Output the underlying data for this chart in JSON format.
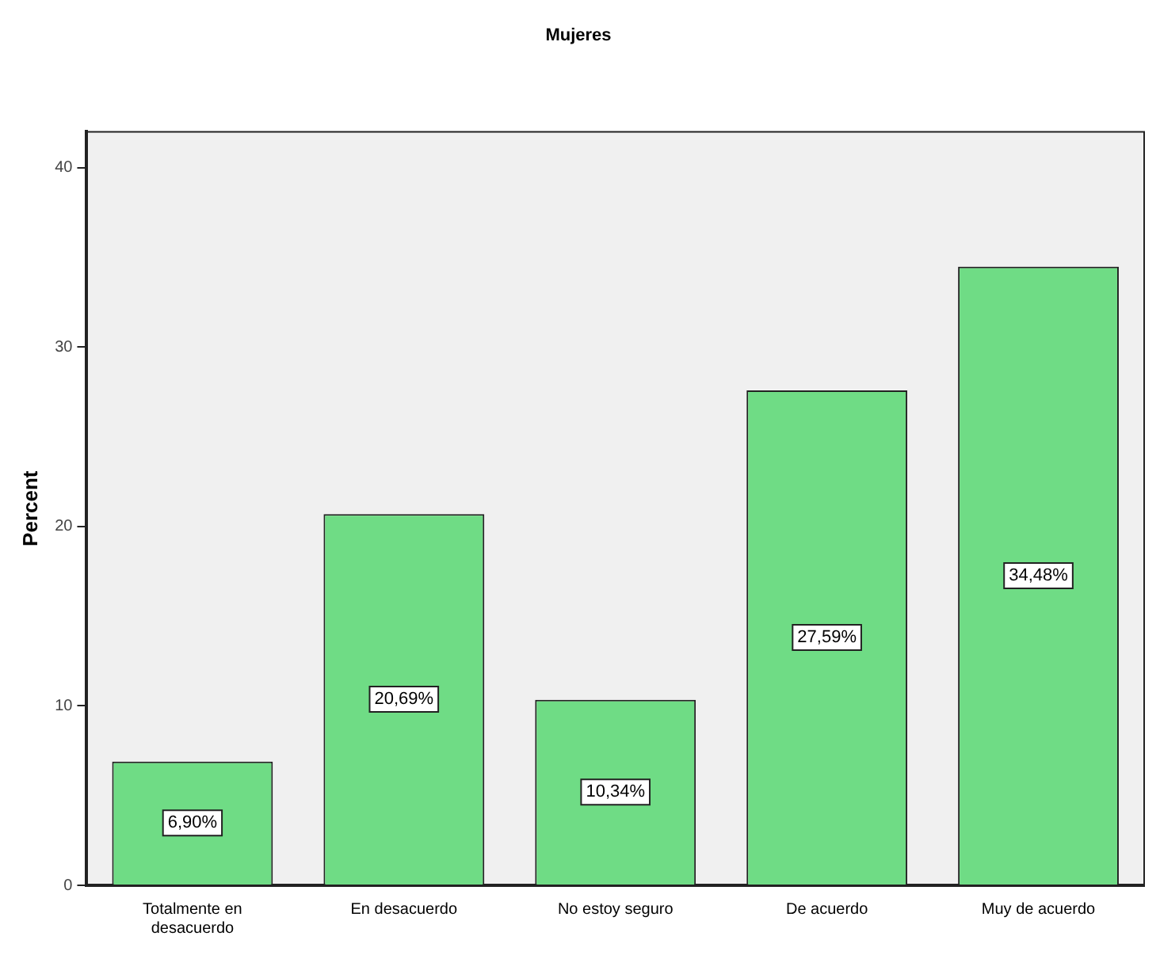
{
  "chart_data": {
    "type": "bar",
    "title": "Mujeres",
    "ylabel": "Percent",
    "categories": [
      "Totalmente en desacuerdo",
      "En desacuerdo",
      "No estoy seguro",
      "De acuerdo",
      "Muy de acuerdo"
    ],
    "values": [
      6.9,
      20.69,
      10.34,
      27.59,
      34.48
    ],
    "value_labels": [
      "6,90%",
      "20,69%",
      "10,34%",
      "27,59%",
      "34,48%"
    ],
    "color": "#6fdc85",
    "ylim": [
      0,
      42
    ],
    "yticks": [
      0,
      10,
      20,
      30,
      40
    ],
    "grid": false,
    "legend": false
  }
}
